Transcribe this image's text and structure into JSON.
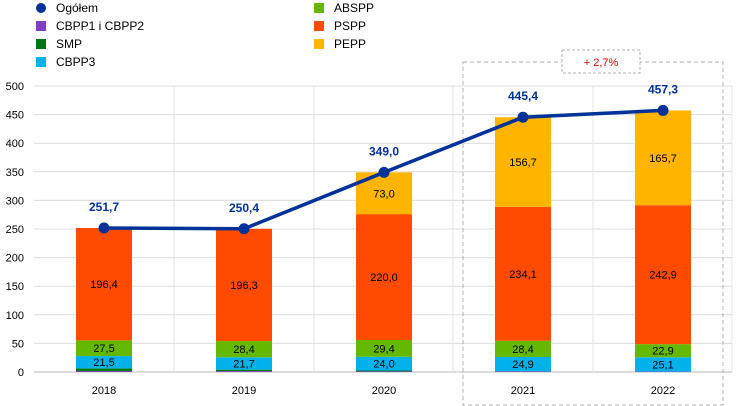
{
  "chart_data": {
    "type": "bar",
    "stacked": true,
    "categories": [
      "2018",
      "2019",
      "2020",
      "2021",
      "2022"
    ],
    "ylim": [
      0,
      500
    ],
    "yticks": [
      0,
      50,
      100,
      150,
      200,
      250,
      300,
      350,
      400,
      450,
      500
    ],
    "grid": true,
    "legend_position": "top-left",
    "series": [
      {
        "name": "CBPP1 i CBPP2",
        "color": "#7f3fbf",
        "values": [
          1.7,
          1.5,
          1.1,
          1.0,
          0.7
        ]
      },
      {
        "name": "SMP",
        "color": "#007816",
        "values": [
          4.6,
          2.5,
          1.5,
          0.3,
          0.0
        ]
      },
      {
        "name": "CBPP3",
        "color": "#00b1ea",
        "values": [
          21.5,
          21.7,
          24.0,
          24.9,
          25.1
        ],
        "labels": [
          "21,5",
          "21,7",
          "24,0",
          "24,9",
          "25,1"
        ]
      },
      {
        "name": "ABSPP",
        "color": "#65b800",
        "values": [
          27.5,
          28.4,
          29.4,
          28.4,
          22.9
        ],
        "labels": [
          "27,5",
          "28,4",
          "29,4",
          "28,4",
          "22,9"
        ]
      },
      {
        "name": "PSPP",
        "color": "#ff4b00",
        "values": [
          196.4,
          196.3,
          220.0,
          234.1,
          242.9
        ],
        "labels": [
          "196,4",
          "196,3",
          "220,0",
          "234,1",
          "242,9"
        ]
      },
      {
        "name": "PEPP",
        "color": "#ffb400",
        "values": [
          0,
          0,
          73.0,
          156.7,
          165.7
        ],
        "labels": [
          "",
          "",
          "73,0",
          "156,7",
          "165,7"
        ]
      }
    ],
    "line": {
      "name": "Ogółem",
      "color": "#003299",
      "values": [
        251.7,
        250.4,
        349.0,
        445.4,
        457.3
      ],
      "labels": [
        "251,7",
        "250,4",
        "349,0",
        "445,4",
        "457,3"
      ]
    },
    "annotation": {
      "text": "+ 2,7%",
      "color": "#e00000"
    },
    "legend": {
      "left": [
        "Ogółem",
        "CBPP1 i CBPP2",
        "SMP",
        "CBPP3"
      ],
      "right": [
        "ABSPP",
        "PSPP",
        "PEPP"
      ]
    }
  }
}
